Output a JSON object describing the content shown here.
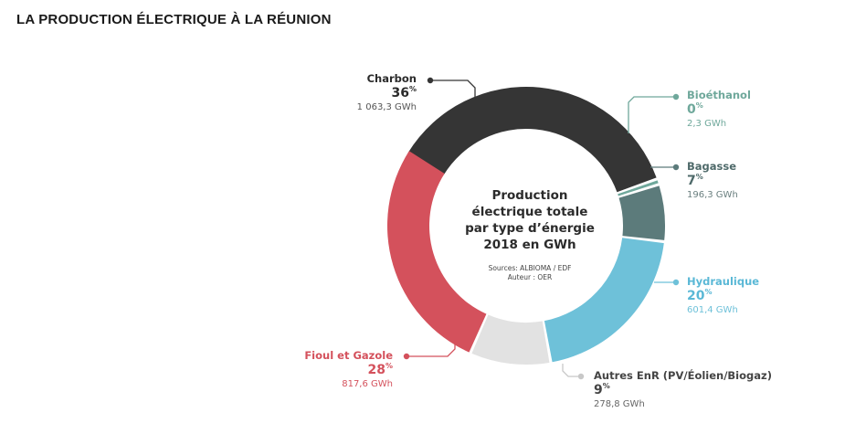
{
  "page": {
    "title": "LA PRODUCTION ÉLECTRIQUE À LA RÉUNION"
  },
  "chart_data": {
    "type": "donut",
    "center_title": [
      "Production",
      "électrique totale",
      "par type d’énergie",
      "2018 en GWh"
    ],
    "sources": [
      "Sources: ALBIOMA / EDF",
      "Auteur : OER"
    ],
    "segments": [
      {
        "name": "Charbon",
        "pct": "36",
        "pct_suffix": "%",
        "value_label": "1 063,3 GWh",
        "value": 1063.3,
        "color": "#353535",
        "label_color": "#2b2b2b",
        "value_color": "#555555",
        "side": "left"
      },
      {
        "name": "Bioéthanol",
        "pct": "0",
        "pct_suffix": "%",
        "value_label": "2,3 GWh",
        "value": 2.3,
        "color": "#6fa89b",
        "label_color": "#6fa89b",
        "value_color": "#6fa89b",
        "side": "right"
      },
      {
        "name": "Bagasse",
        "pct": "7",
        "pct_suffix": "%",
        "value_label": "196,3 GWh",
        "value": 196.3,
        "color": "#5c7b7b",
        "label_color": "#4f6a6a",
        "value_color": "#6a7f7f",
        "side": "right"
      },
      {
        "name": "Hydraulique",
        "pct": "20",
        "pct_suffix": "%",
        "value_label": "601,4 GWh",
        "value": 601.4,
        "color": "#6ec1d9",
        "label_color": "#5ab8d6",
        "value_color": "#6ec1d9",
        "side": "right"
      },
      {
        "name": "Autres EnR (PV/Éolien/Biogaz)",
        "pct": "9",
        "pct_suffix": "%",
        "value_label": "278,8 GWh",
        "value": 278.8,
        "color": "#e2e2e2",
        "label_color": "#444444",
        "value_color": "#666666",
        "side": "right"
      },
      {
        "name": "Fioul et Gazole",
        "pct": "28",
        "pct_suffix": "%",
        "value_label": "817,6 GWh",
        "value": 817.6,
        "color": "#d4515c",
        "label_color": "#d4515c",
        "value_color": "#d4515c",
        "side": "left"
      }
    ]
  }
}
